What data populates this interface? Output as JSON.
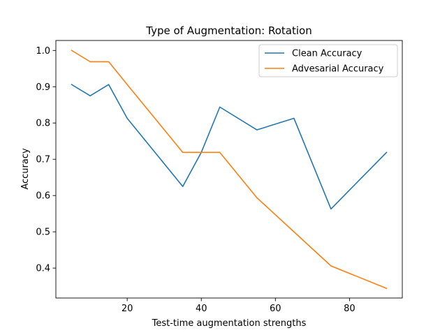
{
  "chart_data": {
    "type": "line",
    "title": "Type of Augmentation: Rotation",
    "xlabel": "Test-time augmentation strengths",
    "ylabel": "Accuracy",
    "xlim": [
      0.75,
      94.25
    ],
    "ylim": [
      0.3175,
      1.0275
    ],
    "xticks": [
      20,
      40,
      60,
      80
    ],
    "yticks": [
      0.4,
      0.5,
      0.6,
      0.7,
      0.8,
      0.9,
      1.0
    ],
    "xtick_labels": [
      "20",
      "40",
      "60",
      "80"
    ],
    "ytick_labels": [
      "0.4",
      "0.5",
      "0.6",
      "0.7",
      "0.8",
      "0.9",
      "1.0"
    ],
    "grid": false,
    "legend_position": "top-right",
    "x": [
      5,
      10,
      15,
      20,
      35,
      40,
      45,
      55,
      65,
      75,
      90
    ],
    "series": [
      {
        "name": "Clean Accuracy",
        "color": "#1f77b4",
        "values": [
          0.906,
          0.875,
          0.906,
          0.813,
          0.625,
          0.719,
          0.844,
          0.781,
          0.813,
          0.563,
          0.719
        ]
      },
      {
        "name": "Advesarial Accuracy",
        "color": "#ff7f0e",
        "values": [
          1.0,
          0.969,
          0.969,
          0.906,
          0.719,
          0.719,
          0.719,
          0.594,
          0.5,
          0.406,
          0.344
        ]
      }
    ]
  }
}
